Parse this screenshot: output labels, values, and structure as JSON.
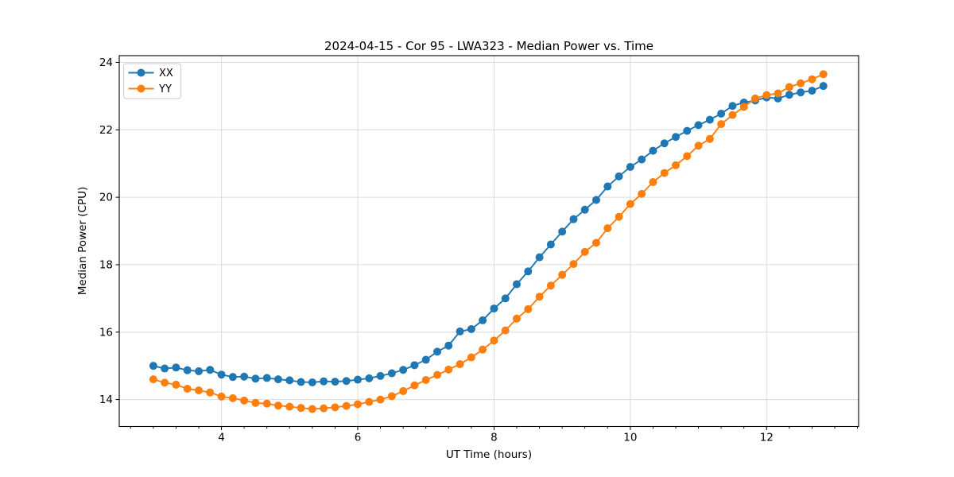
{
  "chart_data": {
    "type": "line",
    "title": "2024-04-15 - Cor 95 - LWA323 - Median Power vs. Time",
    "xlabel": "UT Time (hours)",
    "ylabel": "Median Power (CPU)",
    "xlim": [
      2.5,
      13.35
    ],
    "ylim": [
      13.2,
      24.2
    ],
    "x_major_ticks": [
      4,
      6,
      8,
      10,
      12
    ],
    "x_minor_ticks": [
      2.667,
      3.0,
      3.333,
      3.667,
      4.333,
      4.667,
      5.0,
      5.333,
      5.667,
      6.333,
      6.667,
      7.0,
      7.333,
      7.667,
      8.333,
      8.667,
      9.0,
      9.333,
      9.667,
      10.333,
      10.667,
      11.0,
      11.333,
      11.667,
      12.333,
      12.667,
      13.0,
      13.333
    ],
    "y_major_ticks": [
      14,
      16,
      18,
      20,
      22,
      24
    ],
    "grid": true,
    "legend_position": "upper left",
    "marker": "circle",
    "x": [
      3.0,
      3.167,
      3.333,
      3.5,
      3.667,
      3.833,
      4.0,
      4.167,
      4.333,
      4.5,
      4.667,
      4.833,
      5.0,
      5.167,
      5.333,
      5.5,
      5.667,
      5.833,
      6.0,
      6.167,
      6.333,
      6.5,
      6.667,
      6.833,
      7.0,
      7.167,
      7.333,
      7.5,
      7.667,
      7.833,
      8.0,
      8.167,
      8.333,
      8.5,
      8.667,
      8.833,
      9.0,
      9.167,
      9.333,
      9.5,
      9.667,
      9.833,
      10.0,
      10.167,
      10.333,
      10.5,
      10.667,
      10.833,
      11.0,
      11.167,
      11.333,
      11.5,
      11.667,
      11.833,
      12.0,
      12.167,
      12.333,
      12.5,
      12.667,
      12.833
    ],
    "series": [
      {
        "name": "XX",
        "color": "#1f77b4",
        "values": [
          15.0,
          14.92,
          14.95,
          14.87,
          14.84,
          14.88,
          14.74,
          14.67,
          14.68,
          14.62,
          14.64,
          14.6,
          14.57,
          14.52,
          14.51,
          14.54,
          14.53,
          14.55,
          14.59,
          14.63,
          14.7,
          14.78,
          14.88,
          15.02,
          15.18,
          15.42,
          15.6,
          16.02,
          16.09,
          16.35,
          16.7,
          17.0,
          17.42,
          17.8,
          18.22,
          18.6,
          18.98,
          19.35,
          19.63,
          19.92,
          20.32,
          20.62,
          20.9,
          21.12,
          21.38,
          21.6,
          21.79,
          21.97,
          22.14,
          22.3,
          22.48,
          22.71,
          22.81,
          22.87,
          22.96,
          22.93,
          23.04,
          23.11,
          23.16,
          23.3
        ]
      },
      {
        "name": "YY",
        "color": "#ff7f0e",
        "values": [
          14.6,
          14.5,
          14.44,
          14.32,
          14.27,
          14.21,
          14.09,
          14.04,
          13.97,
          13.9,
          13.88,
          13.82,
          13.79,
          13.75,
          13.72,
          13.74,
          13.77,
          13.81,
          13.86,
          13.93,
          14.0,
          14.1,
          14.25,
          14.42,
          14.58,
          14.73,
          14.89,
          15.05,
          15.25,
          15.48,
          15.75,
          16.05,
          16.4,
          16.68,
          17.05,
          17.38,
          17.7,
          18.02,
          18.38,
          18.65,
          19.08,
          19.42,
          19.8,
          20.1,
          20.45,
          20.72,
          20.95,
          21.22,
          21.53,
          21.73,
          22.17,
          22.44,
          22.68,
          22.93,
          23.03,
          23.08,
          23.27,
          23.38,
          23.5,
          23.65
        ]
      }
    ],
    "colors": {
      "grid": "#dcdcdc",
      "spine": "#000000",
      "text": "#000000",
      "legend_border": "#cccccc",
      "background": "#ffffff"
    }
  }
}
